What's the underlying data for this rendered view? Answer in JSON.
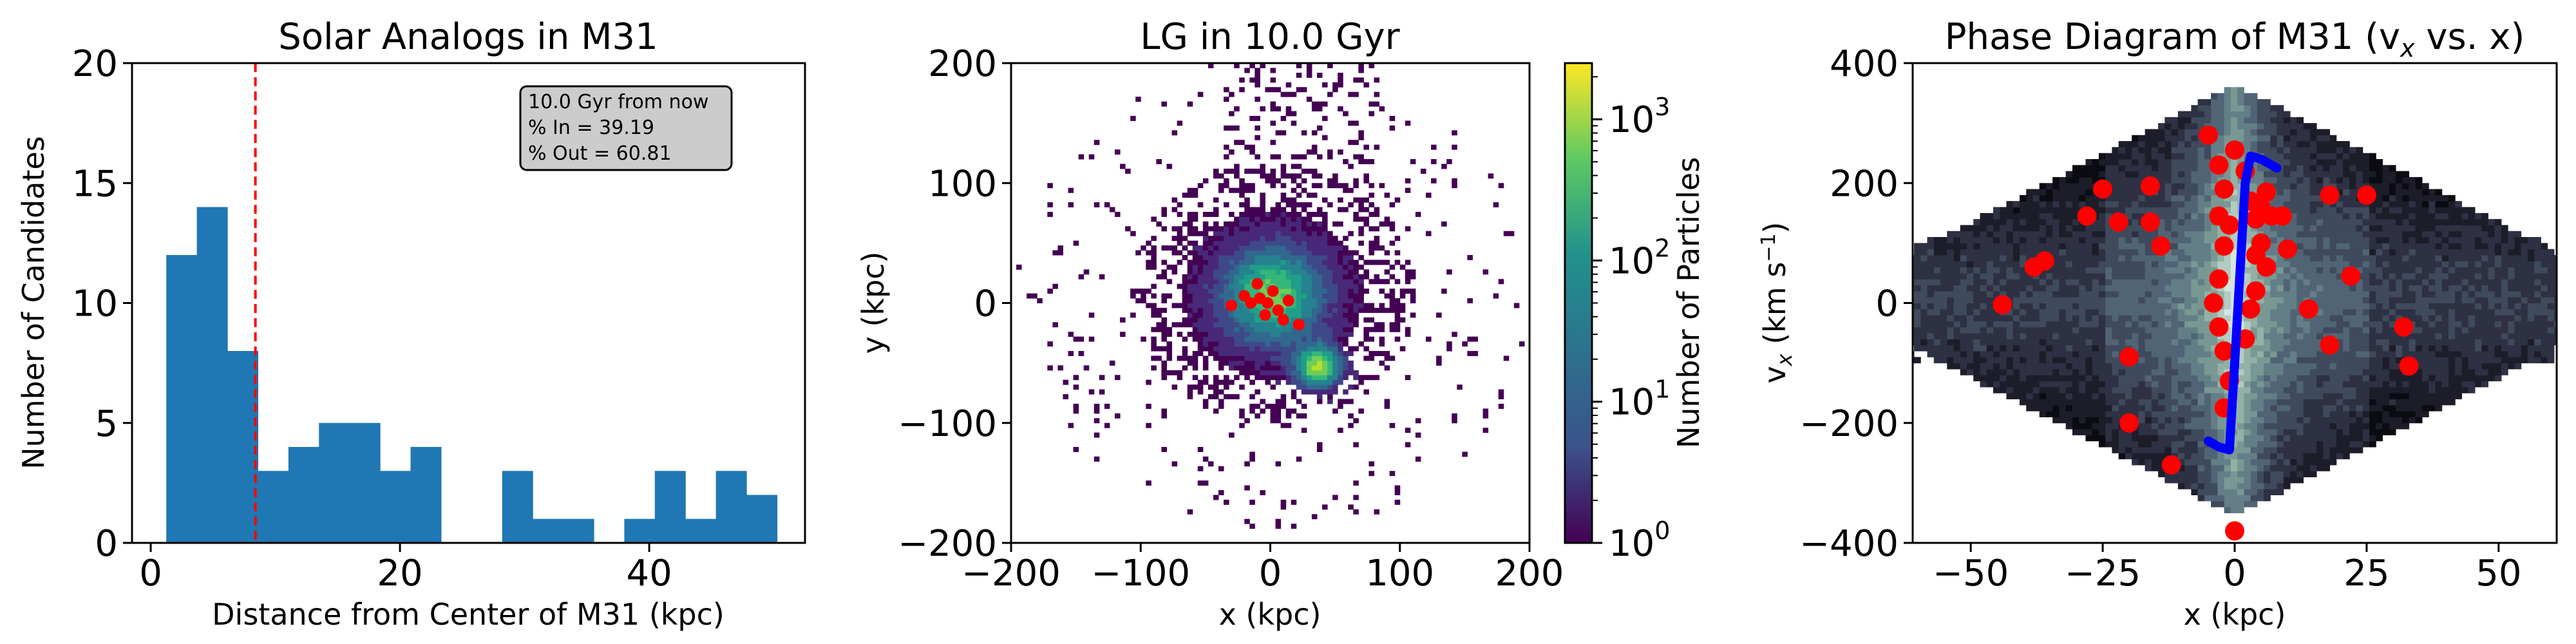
{
  "chart_data": [
    {
      "type": "bar",
      "title": "Solar Analogs in M31",
      "xlabel": "Distance from Center of M31 (kpc)",
      "ylabel": "Number of Candidates",
      "xlim": [
        -1.5,
        52.5
      ],
      "ylim": [
        0,
        20
      ],
      "xticks": [
        0,
        20,
        40
      ],
      "yticks": [
        0,
        5,
        10,
        15,
        20
      ],
      "bin_edges": [
        1.25,
        3.7,
        6.15,
        8.6,
        11.05,
        13.5,
        15.95,
        18.4,
        20.85,
        23.3,
        25.75,
        28.2,
        30.65,
        33.1,
        35.55,
        38.0,
        40.45,
        42.9,
        45.35,
        47.8,
        50.25
      ],
      "counts": [
        12,
        14,
        8,
        3,
        4,
        5,
        5,
        3,
        4,
        0,
        0,
        3,
        1,
        1,
        0,
        1,
        3,
        1,
        3,
        2
      ],
      "bar_color": "#1f77b4",
      "vline": {
        "x": 8.4,
        "color": "#ff0000",
        "style": "dashed"
      },
      "annotation": [
        "10.0 Gyr from now",
        "% In = 39.19",
        "% Out = 60.81"
      ]
    },
    {
      "type": "heatmap",
      "title": "LG in 10.0 Gyr",
      "xlabel": "x (kpc)",
      "ylabel": "y (kpc)",
      "xlim": [
        -200,
        200
      ],
      "ylim": [
        -200,
        200
      ],
      "xticks": [
        -200,
        -100,
        0,
        100,
        200
      ],
      "yticks": [
        -200,
        -100,
        0,
        100,
        200
      ],
      "colormap": "viridis",
      "colorbar": {
        "label": "Number of Particles",
        "scale": "log",
        "range": [
          1,
          2500
        ],
        "ticks": [
          "10^0",
          "10^1",
          "10^2",
          "10^3"
        ]
      },
      "blobs": [
        {
          "cx": 0,
          "cy": 5,
          "sigma": 28,
          "weight": 3.2
        },
        {
          "cx": 35,
          "cy": -55,
          "sigma": 12,
          "weight": 3.6
        }
      ],
      "highlight_points": [
        [
          -8,
          4
        ],
        [
          -15,
          0
        ],
        [
          6,
          -6
        ],
        [
          2,
          10
        ],
        [
          -20,
          6
        ],
        [
          14,
          2
        ],
        [
          -4,
          -10
        ],
        [
          10,
          -14
        ],
        [
          22,
          -18
        ],
        [
          -10,
          16
        ],
        [
          -30,
          -2
        ],
        [
          -2,
          0
        ]
      ],
      "highlight_color": "#ff0000"
    },
    {
      "type": "scatter",
      "title": "Phase Diagram of M31 (vₓ vs. x)",
      "title_prefix": "Phase Diagram of M31 (v",
      "title_sub": "x",
      "title_suffix": " vs. x)",
      "xlabel": "x (kpc)",
      "ylabel_main": "v",
      "ylabel_sub": "x",
      "ylabel_unit": " (km s",
      "ylabel_exp": "−1",
      "ylabel_close": ")",
      "xlim": [
        -61,
        61
      ],
      "ylim": [
        -400,
        400
      ],
      "xticks": [
        -50,
        -25,
        0,
        25,
        50
      ],
      "yticks": [
        -400,
        -200,
        0,
        200,
        400
      ],
      "background": "density heatmap (bone colormap)",
      "points": [
        [
          -44,
          -3
        ],
        [
          -38,
          60
        ],
        [
          -36,
          70
        ],
        [
          -25,
          190
        ],
        [
          -22,
          135
        ],
        [
          -28,
          145
        ],
        [
          -20,
          -90
        ],
        [
          -20,
          -200
        ],
        [
          -16,
          195
        ],
        [
          -16,
          135
        ],
        [
          -14,
          95
        ],
        [
          -12,
          -270
        ],
        [
          -5,
          280
        ],
        [
          -3,
          230
        ],
        [
          -2,
          190
        ],
        [
          -3,
          145
        ],
        [
          -1,
          130
        ],
        [
          -2,
          95
        ],
        [
          -3,
          40
        ],
        [
          -4,
          0
        ],
        [
          -3,
          -40
        ],
        [
          -2,
          -80
        ],
        [
          -1,
          -130
        ],
        [
          -2,
          -175
        ],
        [
          0,
          -380
        ],
        [
          0,
          255
        ],
        [
          2,
          220
        ],
        [
          3,
          170
        ],
        [
          4,
          140
        ],
        [
          5,
          100
        ],
        [
          6,
          60
        ],
        [
          4,
          20
        ],
        [
          3,
          -10
        ],
        [
          2,
          -60
        ],
        [
          4,
          80
        ],
        [
          5,
          160
        ],
        [
          6,
          185
        ],
        [
          7,
          145
        ],
        [
          9,
          145
        ],
        [
          10,
          90
        ],
        [
          14,
          -10
        ],
        [
          18,
          180
        ],
        [
          18,
          -70
        ],
        [
          22,
          45
        ],
        [
          25,
          180
        ],
        [
          32,
          -40
        ],
        [
          33,
          -105
        ]
      ],
      "point_color": "#ff0000",
      "line": [
        [
          -5,
          -230
        ],
        [
          -3,
          -240
        ],
        [
          -1,
          -245
        ],
        [
          0,
          -100
        ],
        [
          1,
          50
        ],
        [
          2,
          200
        ],
        [
          3,
          245
        ],
        [
          5,
          240
        ],
        [
          7,
          230
        ],
        [
          8,
          225
        ]
      ],
      "line_color": "#0000ff"
    }
  ]
}
